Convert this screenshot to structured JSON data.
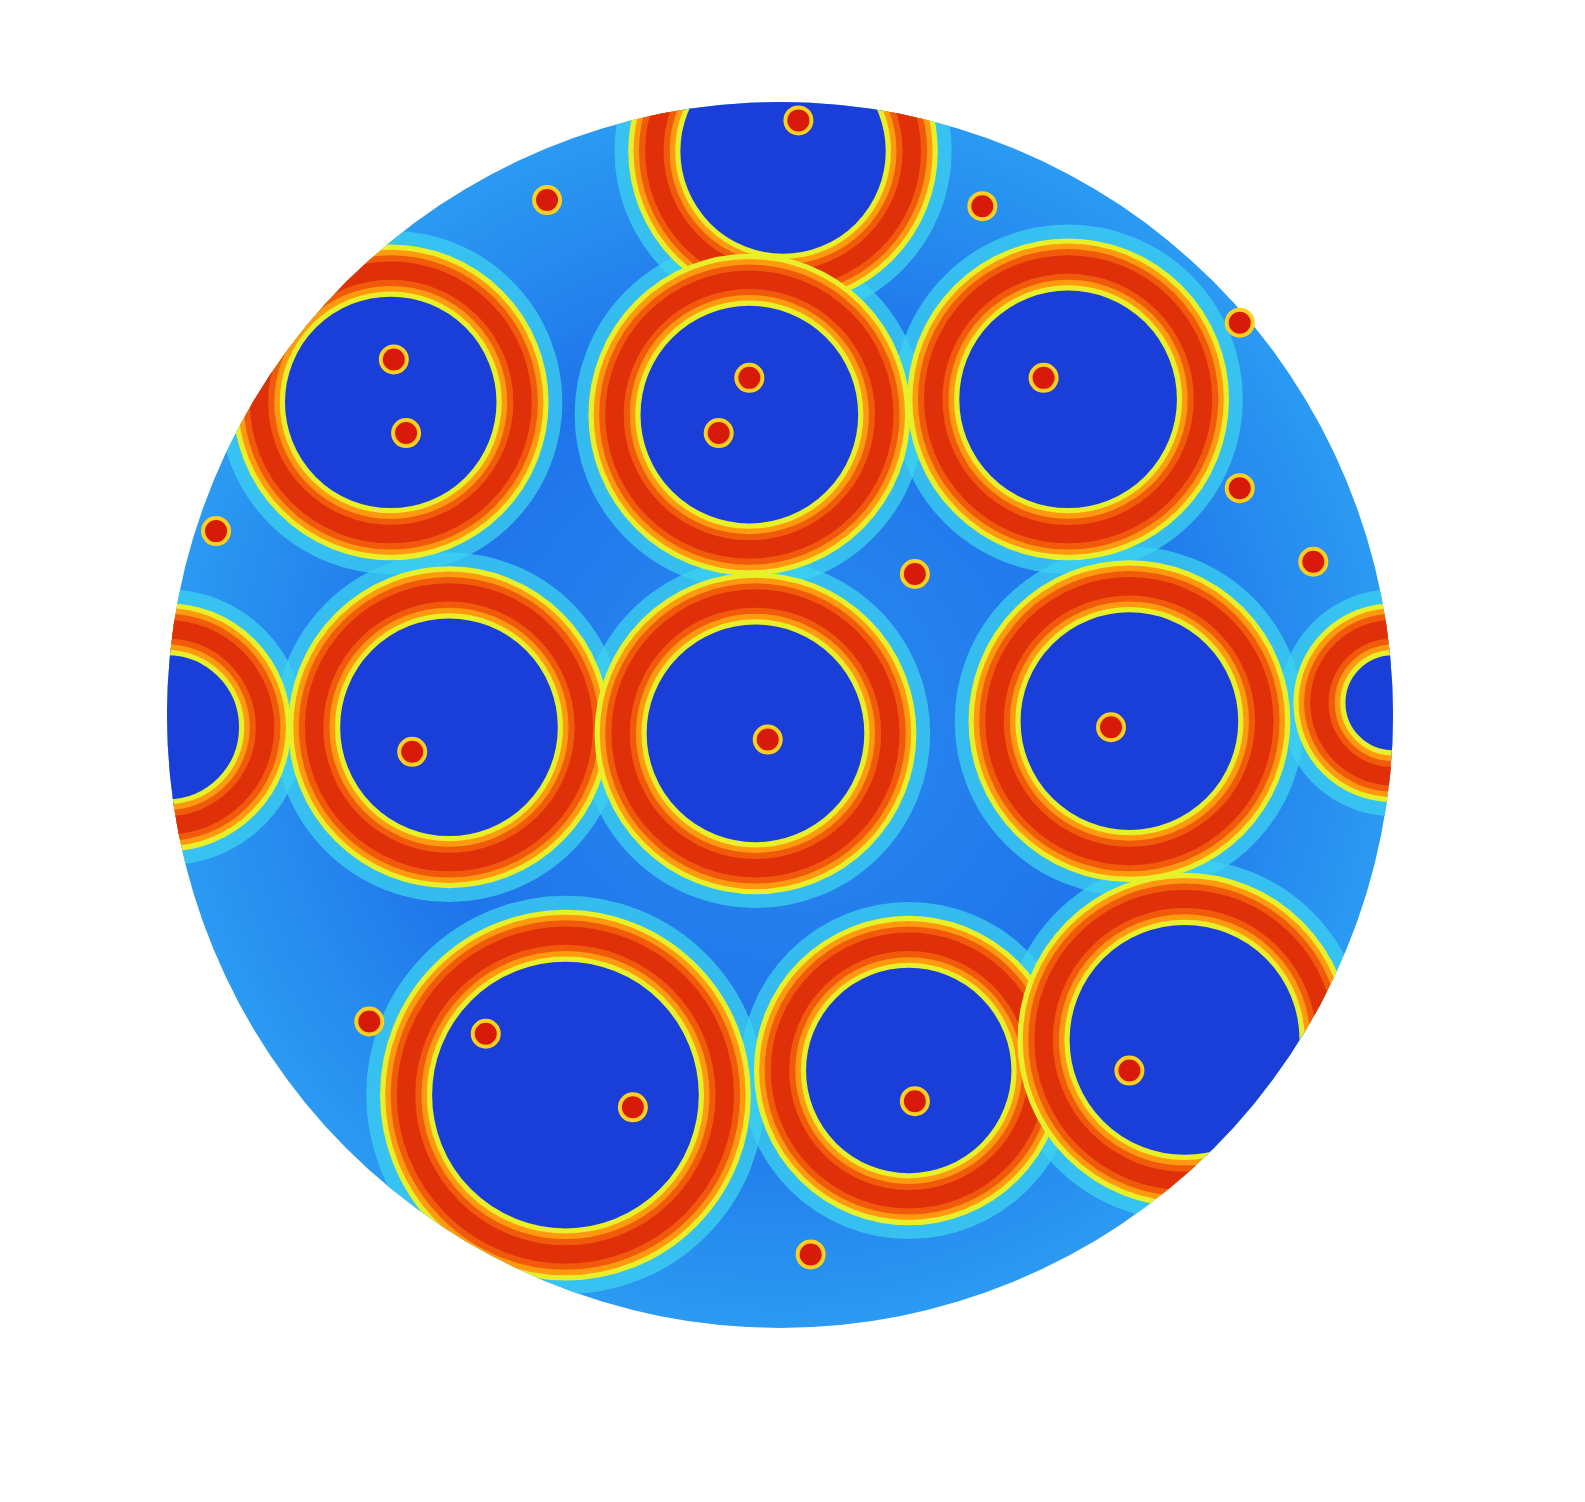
{
  "chart_data": {
    "type": "field",
    "xlim": [
      -1,
      1
    ],
    "ylim": [
      -1,
      1
    ],
    "tick_labels": false,
    "grid": false,
    "disk": {
      "x": 0,
      "y": 0,
      "r": 1
    },
    "rings": [
      {
        "x": 0.005,
        "y": 0.92,
        "r": 0.21
      },
      {
        "x": -0.635,
        "y": 0.51,
        "r": 0.215
      },
      {
        "x": -0.05,
        "y": 0.49,
        "r": 0.22
      },
      {
        "x": 0.47,
        "y": 0.515,
        "r": 0.22
      },
      {
        "x": -0.54,
        "y": -0.02,
        "r": 0.22
      },
      {
        "x": -0.04,
        "y": -0.03,
        "r": 0.22
      },
      {
        "x": 0.57,
        "y": -0.01,
        "r": 0.22
      },
      {
        "x": -0.35,
        "y": -0.62,
        "r": 0.26
      },
      {
        "x": 0.21,
        "y": -0.58,
        "r": 0.21
      },
      {
        "x": 0.66,
        "y": -0.53,
        "r": 0.23
      },
      {
        "x": -1.0,
        "y": -0.02,
        "r": 0.16
      },
      {
        "x": 1.0,
        "y": 0.02,
        "r": 0.12
      }
    ],
    "spots": [
      {
        "x": -0.63,
        "y": 0.58
      },
      {
        "x": -0.61,
        "y": 0.46
      },
      {
        "x": -0.05,
        "y": 0.55
      },
      {
        "x": -0.1,
        "y": 0.46
      },
      {
        "x": 0.43,
        "y": 0.55
      },
      {
        "x": -0.02,
        "y": -0.04
      },
      {
        "x": -0.6,
        "y": -0.06
      },
      {
        "x": 0.54,
        "y": -0.02
      },
      {
        "x": -0.48,
        "y": -0.52
      },
      {
        "x": -0.24,
        "y": -0.64
      },
      {
        "x": 0.22,
        "y": -0.63
      },
      {
        "x": 0.57,
        "y": -0.58
      },
      {
        "x": 0.75,
        "y": 0.37
      },
      {
        "x": 0.75,
        "y": 0.64
      },
      {
        "x": 0.87,
        "y": 0.25
      },
      {
        "x": -0.92,
        "y": 0.3
      },
      {
        "x": 0.22,
        "y": 0.23
      },
      {
        "x": -0.38,
        "y": 0.84
      },
      {
        "x": 0.33,
        "y": 0.83
      },
      {
        "x": 0.03,
        "y": 0.97
      },
      {
        "x": -0.67,
        "y": -0.5
      },
      {
        "x": 0.05,
        "y": -0.88
      }
    ]
  }
}
